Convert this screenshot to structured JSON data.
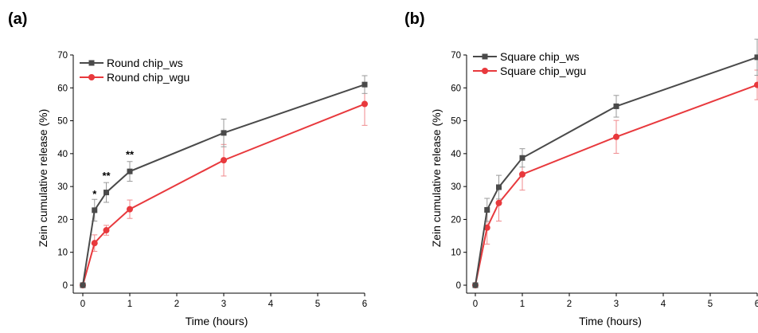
{
  "colors": {
    "ws": "#4a4a4a",
    "wgu": "#e8393d",
    "axis": "#000000"
  },
  "chart_data": [
    {
      "type": "line",
      "panel_label": "(a)",
      "xlabel": "Time (hours)",
      "ylabel": "Zein cumulative release (%)",
      "xlim": [
        -0.25,
        6.05
      ],
      "ylim": [
        -2,
        70
      ],
      "xticks": [
        0,
        1,
        2,
        3,
        4,
        5,
        6
      ],
      "yticks": [
        0,
        10,
        20,
        30,
        40,
        50,
        60,
        70
      ],
      "legend_position": "top-left",
      "series": [
        {
          "name": "Round chip_ws",
          "key": "ws",
          "marker": "square",
          "x": [
            0,
            0.25,
            0.5,
            1,
            3,
            6
          ],
          "values": [
            0,
            22.8,
            28.2,
            34.6,
            46.3,
            61
          ],
          "err": [
            0,
            3.3,
            3,
            3,
            4.2,
            2.7
          ]
        },
        {
          "name": "Round chip_wgu",
          "key": "wgu",
          "marker": "circle",
          "x": [
            0,
            0.25,
            0.5,
            1,
            3,
            6
          ],
          "values": [
            0,
            12.8,
            16.7,
            23.1,
            38,
            55.1
          ],
          "err": [
            0,
            2.5,
            1.5,
            2.8,
            4.8,
            6.5
          ]
        }
      ],
      "annotations": [
        {
          "x": 0.25,
          "y": 26.6,
          "text": "*"
        },
        {
          "x": 0.5,
          "y": 32.2,
          "text": "**"
        },
        {
          "x": 1,
          "y": 38.6,
          "text": "**"
        }
      ]
    },
    {
      "type": "line",
      "panel_label": "(b)",
      "xlabel": "Time (hours)",
      "ylabel": "Zein cumulative release (%)",
      "xlim": [
        -0.25,
        6.05
      ],
      "ylim": [
        -2,
        70
      ],
      "xticks": [
        0,
        1,
        2,
        3,
        4,
        5,
        6
      ],
      "yticks": [
        0,
        10,
        20,
        30,
        40,
        50,
        60,
        70
      ],
      "legend_position": "top-left",
      "series": [
        {
          "name": "Square chip_ws",
          "key": "ws",
          "marker": "square",
          "x": [
            0,
            0.25,
            0.5,
            1,
            3,
            6
          ],
          "values": [
            0,
            22.9,
            29.8,
            38.7,
            54.4,
            69.3
          ],
          "err": [
            0,
            3.5,
            3.6,
            2.8,
            3.3,
            5.5
          ]
        },
        {
          "name": "Square chip_wgu",
          "key": "wgu",
          "marker": "circle",
          "x": [
            0,
            0.25,
            0.5,
            1,
            3,
            6
          ],
          "values": [
            0,
            17.5,
            25,
            33.7,
            45.1,
            60.9
          ],
          "err": [
            0,
            5,
            5.5,
            4.8,
            5,
            4.5
          ]
        }
      ],
      "annotations": []
    }
  ]
}
